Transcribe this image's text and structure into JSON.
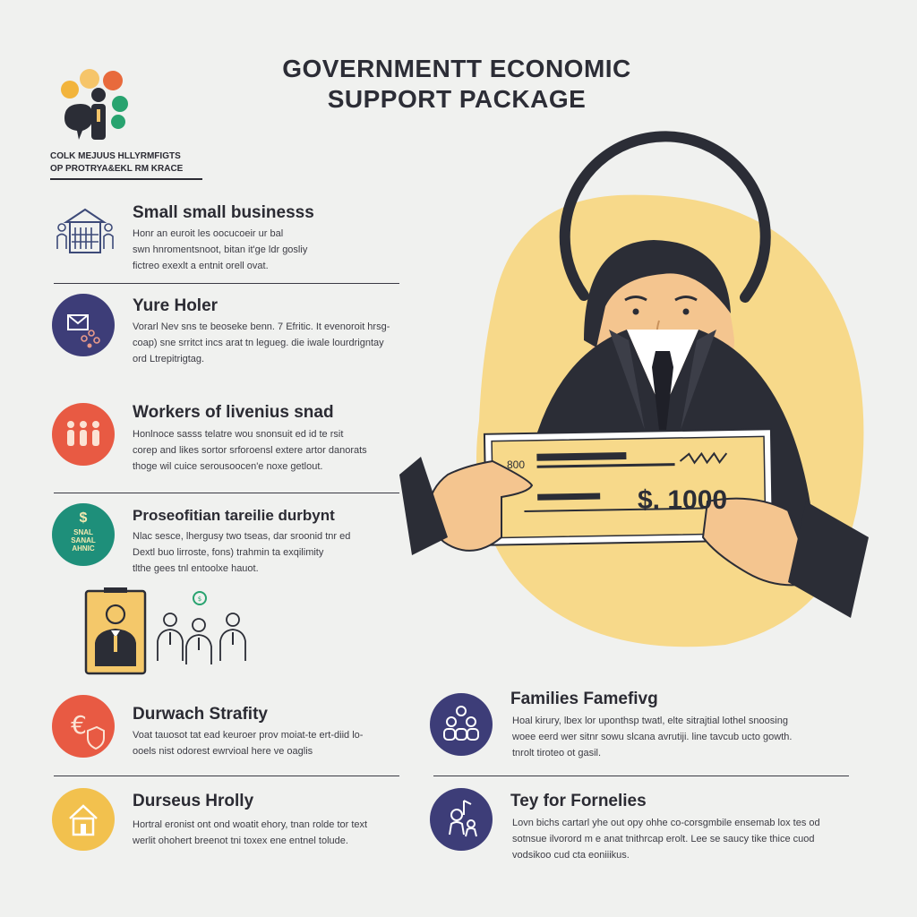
{
  "title": {
    "line1": "GOVERNMENTT ECONOMIC",
    "line2": "SUPPORT PACKAGE"
  },
  "org": {
    "line1": "COLK MEJUUS HLLYRMFIGTS",
    "line2": "OP PROTRYA&EKL RM KRACE"
  },
  "sections": [
    {
      "title": "Small small businesss",
      "lines": [
        "Honr an euroit les oocucoeir ur bal",
        "swn hnromentsnoot, bitan it'ge ldr gosliy",
        "fictreo exexlt a entnit orell ovat."
      ]
    },
    {
      "title": "Yure Holer",
      "lines": [
        "Vorarl Nev sns te beoseke benn. 7 Efritic. It evenoroit hrsg-",
        "coap) sne srritct incs arat tn legueg. die iwale lourdrigntay",
        "ord Ltrepitrigtag."
      ]
    },
    {
      "title": "Workers of livenius snad",
      "lines": [
        "Honlnoce sasss telatre wou snonsuit ed id te rsit",
        "corep and likes sortor srforoensl extere artor danorats",
        "thoge wil cuice serousoocen'e noxe getlout."
      ]
    },
    {
      "title": "Proseofitian tareilie durbynt",
      "lines": [
        "Nlac sesce, lhergusy two tseas, dar sroonid tnr ed",
        "Dextl buo lirroste, fons) trahmin ta exqilimity",
        "tlthe gees tnl entoolxe hauot."
      ],
      "badge": [
        "SNAL",
        "SANAL",
        "AHNIC"
      ]
    },
    {
      "title": "Durwach Strafity",
      "lines": [
        "Voat tauosot tat ead keuroer prov moiat-te ert-diid lo-",
        "ooels nist odorest ewrvioal here ve oaglis"
      ]
    },
    {
      "title": "Durseus Hrolly",
      "lines": [
        "Hortral eronist ont ond woatit ehory, tnan rolde tor text",
        "werlit ohohert breenot tni toxex ene entnel tolude."
      ]
    },
    {
      "title": "Families Famefivg",
      "lines": [
        "Hoal kirury, lbex lor uponthsp twatl, elte sitrajtial lothel snoosing",
        "woee eerd wer sitnr sowu slcana avrutiji. line tavcub ucto gowth.",
        "tnrolt tiroteo ot gasil."
      ]
    },
    {
      "title": "Tey for Fornelies",
      "lines": [
        "Lovn bichs cartarl yhe out opy ohhe co-corsgmbile ensemab lox tes od",
        "sotnsue ilvorord m e anat tnithrcap erolt. Lee se saucy tike thice cuod",
        "vodsikoo cud cta eoniiikus."
      ]
    }
  ],
  "check": {
    "label": "800",
    "amount": "$. 1000"
  },
  "colors": {
    "accent_yellow": "#f7d98a",
    "navy": "#3d3d78",
    "red": "#e85a43",
    "teal": "#1e8f7a",
    "gold": "#f2c14e",
    "dark": "#2b2d36"
  }
}
